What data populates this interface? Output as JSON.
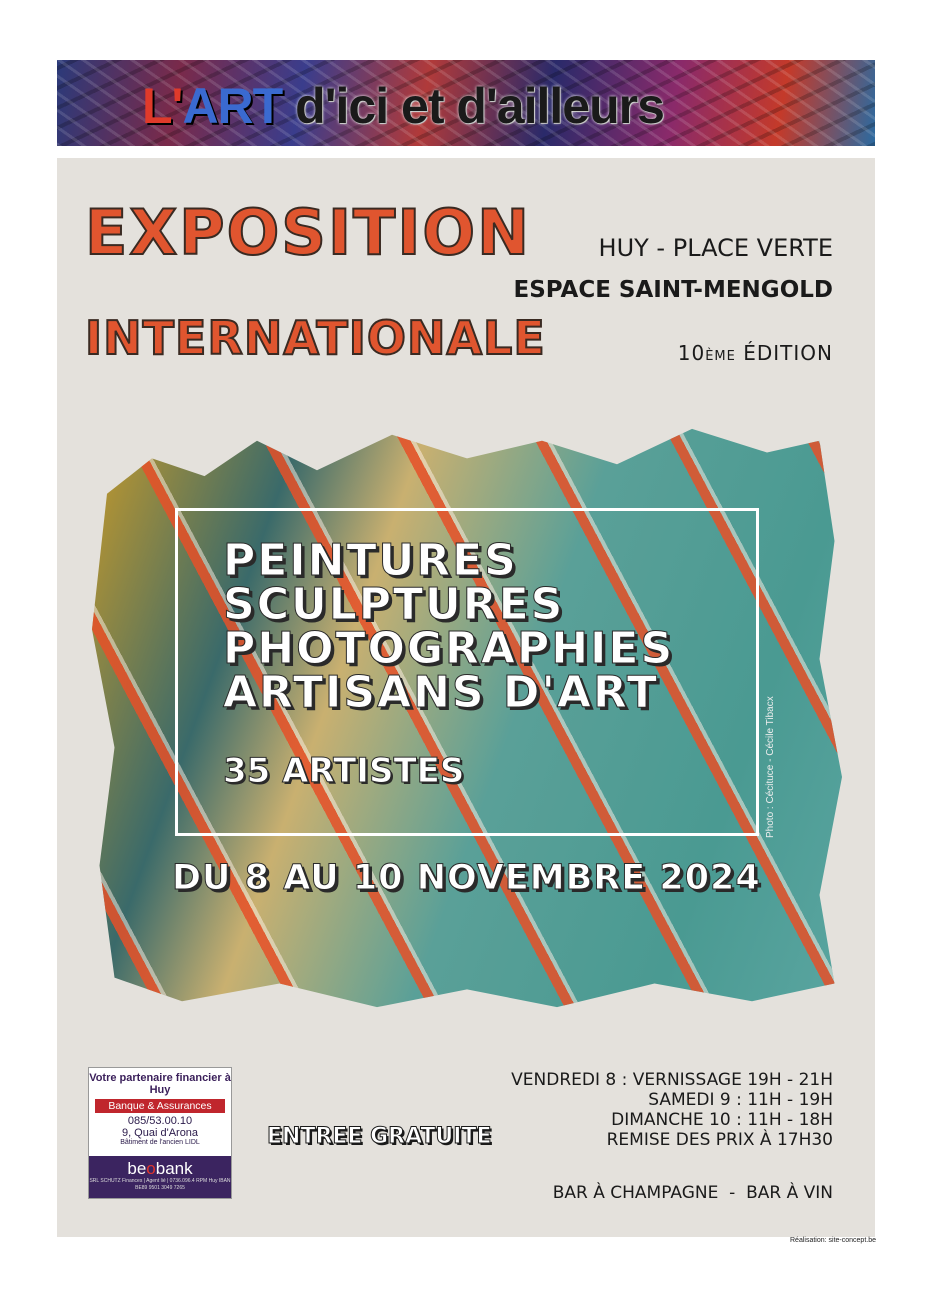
{
  "banner": {
    "title_part1": "L'",
    "title_part2": "ART",
    "title_rest": " d'ici et d'ailleurs"
  },
  "title": {
    "line1": "EXPOSITION",
    "line2": "INTERNATIONALE"
  },
  "location": {
    "city": "HUY - PLACE VERTE",
    "venue": "ESPACE SAINT-MENGOLD",
    "edition_num": "10",
    "edition_sup": "ÈME",
    "edition_word": " ÉDITION"
  },
  "categories": [
    "PEINTURES",
    "SCULPTURES",
    "PHOTOGRAPHIES",
    "ARTISANS D'ART"
  ],
  "artists": "35 ARTISTES",
  "photo_credit": "Photo : Cécituce - Cécile Tibacx",
  "dates": "DU 8 AU 10 NOVEMBRE 2024",
  "ad": {
    "headline": "Votre partenaire financier à Huy",
    "tag": "Banque & Assurances",
    "phone": "085/53.00.10",
    "address": "9, Quai d'Arona",
    "building": "Bâtiment de l'ancien LIDL",
    "logo_pre": "be",
    "logo_o": "o",
    "logo_post": "bank",
    "fine_print": "SRL SCHUTZ Finances | Agent lié | 0736.096.4 RPM Huy IBAN BE89 9501 3049 7265"
  },
  "entry": "ENTREE GRATUITE",
  "schedule": [
    "VENDREDI 8 : VERNISSAGE 19H - 21H",
    "SAMEDI 9 : 11H - 19H",
    "DIMANCHE 10 : 11H - 18H",
    "REMISE DES PRIX À 17H30"
  ],
  "bars": "BAR À CHAMPAGNE  -  BAR À VIN",
  "realisation": "Réalisation: site-concept.be",
  "colors": {
    "title_orange": "#e0552f",
    "panel_bg": "#e4e1dc",
    "ad_purple": "#3b2460",
    "ad_red": "#c0262d"
  }
}
